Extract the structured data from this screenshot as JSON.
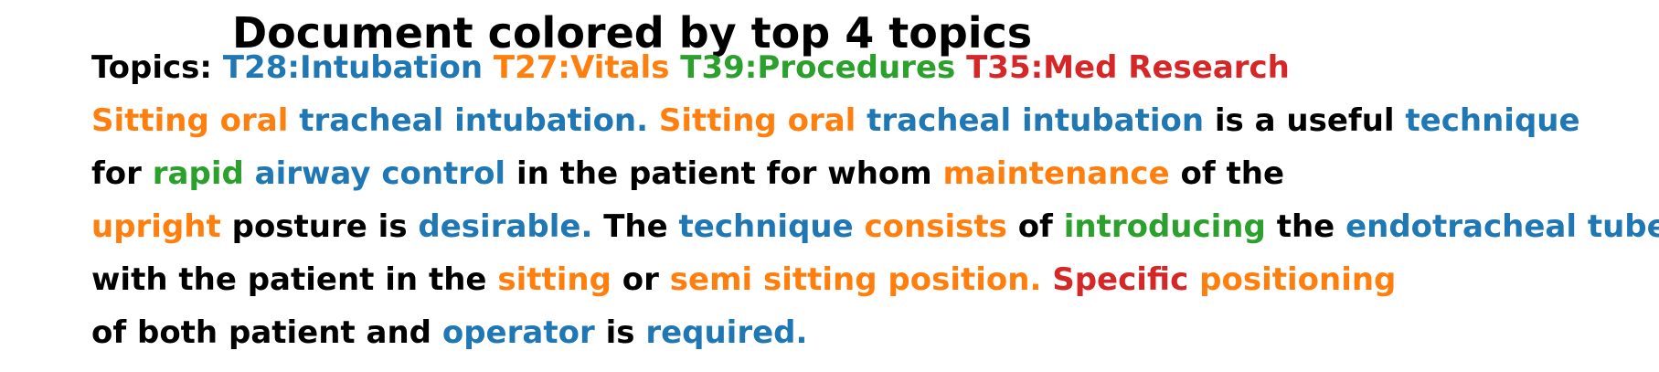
{
  "title": "Document colored by top 4 topics",
  "legend": {
    "prefix": "Topics:",
    "topics": [
      {
        "label": "T28:Intubation",
        "color": "#1f77b4"
      },
      {
        "label": "T27:Vitals",
        "color": "#ff7f0e"
      },
      {
        "label": "T39:Procedures",
        "color": "#2ca02c"
      },
      {
        "label": "T35:Med Research",
        "color": "#d62728"
      }
    ]
  },
  "colors": {
    "none": "#000000",
    "T28": "#1f77b4",
    "T27": "#ff7f0e",
    "T39": "#2ca02c",
    "T35": "#d62728"
  },
  "lines": [
    [
      {
        "text": "Sitting oral",
        "topic": "T27"
      },
      {
        "text": "tracheal intubation.",
        "topic": "T28"
      },
      {
        "text": "Sitting oral",
        "topic": "T27"
      },
      {
        "text": "tracheal intubation",
        "topic": "T28"
      },
      {
        "text": "is a useful",
        "topic": "none"
      },
      {
        "text": "technique",
        "topic": "T28"
      }
    ],
    [
      {
        "text": "for",
        "topic": "none"
      },
      {
        "text": "rapid",
        "topic": "T39"
      },
      {
        "text": "airway control",
        "topic": "T28"
      },
      {
        "text": "in the patient for whom",
        "topic": "none"
      },
      {
        "text": "maintenance",
        "topic": "T27"
      },
      {
        "text": "of the",
        "topic": "none"
      }
    ],
    [
      {
        "text": "upright",
        "topic": "T27"
      },
      {
        "text": "posture is",
        "topic": "none"
      },
      {
        "text": "desirable.",
        "topic": "T28"
      },
      {
        "text": "The",
        "topic": "none"
      },
      {
        "text": "technique",
        "topic": "T28"
      },
      {
        "text": "consists",
        "topic": "T27"
      },
      {
        "text": "of",
        "topic": "none"
      },
      {
        "text": "introducing",
        "topic": "T39"
      },
      {
        "text": "the",
        "topic": "none"
      },
      {
        "text": "endotracheal tube",
        "topic": "T28"
      }
    ],
    [
      {
        "text": "with the patient in the",
        "topic": "none"
      },
      {
        "text": "sitting",
        "topic": "T27"
      },
      {
        "text": "or",
        "topic": "none"
      },
      {
        "text": "semi sitting position.",
        "topic": "T27"
      },
      {
        "text": "Specific",
        "topic": "T35"
      },
      {
        "text": "positioning",
        "topic": "T27"
      }
    ],
    [
      {
        "text": "of both patient and",
        "topic": "none"
      },
      {
        "text": "operator",
        "topic": "T28"
      },
      {
        "text": "is",
        "topic": "none"
      },
      {
        "text": "required.",
        "topic": "T28"
      }
    ]
  ]
}
